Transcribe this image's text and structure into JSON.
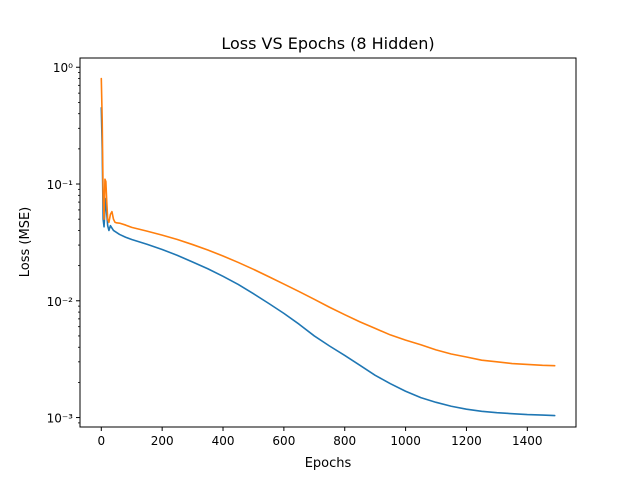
{
  "chart_data": {
    "type": "line",
    "title": "Loss VS Epochs (8 Hidden)",
    "xlabel": "Epochs",
    "ylabel": "Loss (MSE)",
    "xlim": [
      -70,
      1560
    ],
    "ylim": [
      0.00083,
      1.2
    ],
    "yscale": "log",
    "grid": false,
    "x_ticks": [
      0,
      200,
      400,
      600,
      800,
      1000,
      1200,
      1400
    ],
    "x_tick_labels": [
      "0",
      "200",
      "400",
      "600",
      "800",
      "1000",
      "1200",
      "1400"
    ],
    "y_ticks": [
      0.001,
      0.01,
      0.1,
      1
    ],
    "y_tick_labels": [
      "10⁻³",
      "10⁻²",
      "10⁻¹",
      "10⁰"
    ],
    "series": [
      {
        "color": "#1f77b4",
        "x": [
          0,
          3,
          6,
          9,
          12,
          15,
          18,
          21,
          25,
          30,
          35,
          40,
          50,
          60,
          80,
          100,
          150,
          200,
          250,
          300,
          350,
          400,
          450,
          500,
          550,
          600,
          650,
          700,
          750,
          800,
          850,
          900,
          950,
          1000,
          1050,
          1100,
          1150,
          1200,
          1250,
          1300,
          1350,
          1400,
          1450,
          1490
        ],
        "values": [
          0.45,
          0.2,
          0.05,
          0.043,
          0.06,
          0.075,
          0.055,
          0.044,
          0.04,
          0.044,
          0.042,
          0.04,
          0.0385,
          0.037,
          0.035,
          0.0335,
          0.0305,
          0.0275,
          0.0245,
          0.0215,
          0.0188,
          0.0162,
          0.0138,
          0.0115,
          0.0095,
          0.0078,
          0.0063,
          0.005,
          0.0041,
          0.0034,
          0.0028,
          0.0023,
          0.00195,
          0.00168,
          0.00148,
          0.00135,
          0.00125,
          0.00118,
          0.00113,
          0.0011,
          0.00108,
          0.00106,
          0.00105,
          0.00104
        ]
      },
      {
        "color": "#ff7f0e",
        "x": [
          0,
          3,
          6,
          9,
          12,
          15,
          18,
          21,
          25,
          30,
          35,
          40,
          45,
          50,
          60,
          80,
          100,
          150,
          200,
          250,
          300,
          350,
          400,
          450,
          500,
          550,
          600,
          650,
          700,
          750,
          800,
          850,
          900,
          950,
          1000,
          1050,
          1100,
          1150,
          1200,
          1250,
          1300,
          1350,
          1400,
          1450,
          1490
        ],
        "values": [
          0.8,
          0.35,
          0.08,
          0.05,
          0.11,
          0.105,
          0.07,
          0.05,
          0.047,
          0.055,
          0.058,
          0.05,
          0.047,
          0.0465,
          0.0462,
          0.0445,
          0.0425,
          0.0395,
          0.0365,
          0.0335,
          0.0303,
          0.0272,
          0.0242,
          0.0213,
          0.0186,
          0.0161,
          0.0139,
          0.012,
          0.0103,
          0.0088,
          0.0076,
          0.0066,
          0.0058,
          0.0051,
          0.0046,
          0.0042,
          0.0038,
          0.0035,
          0.0033,
          0.0031,
          0.003,
          0.0029,
          0.00285,
          0.0028,
          0.00278
        ]
      }
    ]
  }
}
